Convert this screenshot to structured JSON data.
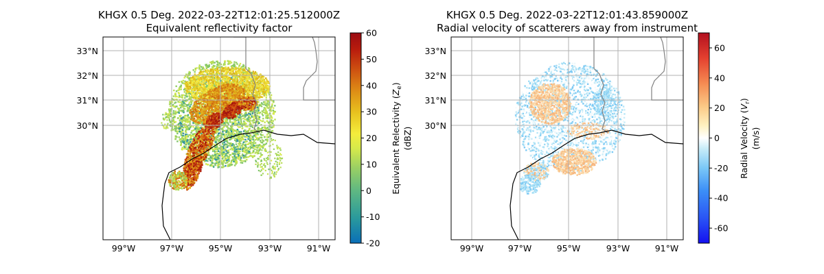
{
  "chart_data": [
    {
      "type": "heatmap",
      "title": "KHGX 0.5 Deg. 2022-03-22T12:01:25.512000Z",
      "subtitle": "Equivalent reflectivity factor",
      "x_ticks": [
        "99°W",
        "97°W",
        "95°W",
        "93°W",
        "91°W"
      ],
      "y_ticks": [
        "33°N",
        "32°N",
        "31°N",
        "30°N"
      ],
      "colorbar": {
        "label_main": "Equivalent Relectivity (",
        "label_symbol": "Z",
        "label_sub": "e",
        "label_end": ")",
        "label_units": "(dBZ)",
        "min": -20,
        "max": 60,
        "ticks": [
          "60",
          "50",
          "40",
          "30",
          "20",
          "10",
          "0",
          "-10",
          "-20"
        ],
        "tick_values": [
          60,
          50,
          40,
          30,
          20,
          10,
          0,
          -10,
          -20
        ],
        "colormap": "pyart_HomeyerRainbow"
      }
    },
    {
      "type": "heatmap",
      "title": "KHGX 0.5 Deg. 2022-03-22T12:01:43.859000Z",
      "subtitle": "Radial velocity of scatterers away from instrument",
      "x_ticks": [
        "99°W",
        "97°W",
        "95°W",
        "93°W",
        "91°W"
      ],
      "y_ticks": [
        "33°N",
        "32°N",
        "31°N",
        "30°N"
      ],
      "colorbar": {
        "label_main": "Radial Velocity (",
        "label_symbol": "V",
        "label_sub": "r",
        "label_end": ")",
        "label_units": "(m/s)",
        "min": -70,
        "max": 70,
        "ticks": [
          "60",
          "40",
          "20",
          "0",
          "-20",
          "-40",
          "-60"
        ],
        "tick_values": [
          60,
          40,
          20,
          0,
          -20,
          -40,
          -60
        ],
        "colormap": "pyart_BuDRd18"
      }
    }
  ]
}
